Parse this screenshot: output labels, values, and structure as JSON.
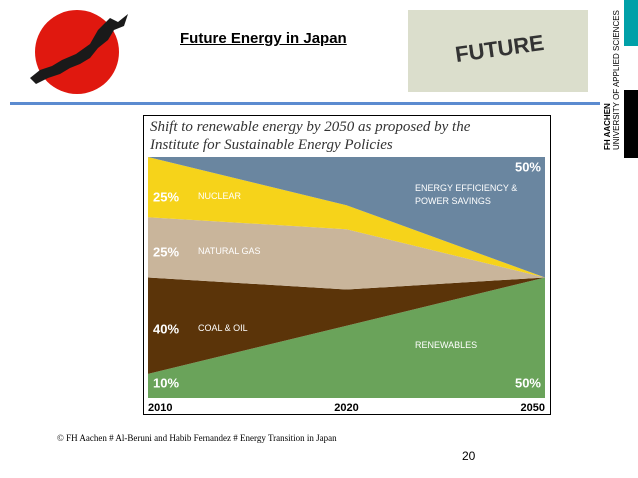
{
  "slide": {
    "title": "Future Energy in Japan",
    "photo_text": "FUTURE",
    "logo_name": "FH AACHEN",
    "logo_subtitle": "UNIVERSITY OF APPLIED SCIENCES",
    "footer": "© FH Aachen # Al-Beruni and Habib Fernandez # Energy Transition in Japan",
    "page_number": "20"
  },
  "chart_data": {
    "type": "stacked-area",
    "title": "Shift to renewable energy by 2050 as proposed by the Institute for Sustainable Energy Policies",
    "categories": [
      "2010",
      "2020",
      "2050"
    ],
    "series": [
      {
        "name": "RENEWABLES",
        "color": "#6aa35a",
        "values": [
          10,
          30,
          50
        ],
        "value_labels": [
          "10%",
          null,
          "50%"
        ]
      },
      {
        "name": "COAL & OIL",
        "color": "#5b3409",
        "values": [
          40,
          15,
          0
        ],
        "value_labels": [
          "40%",
          null,
          null
        ]
      },
      {
        "name": "NATURAL GAS",
        "color": "#c9b59b",
        "values": [
          25,
          25,
          0
        ],
        "value_labels": [
          "25%",
          null,
          null
        ]
      },
      {
        "name": "NUCLEAR",
        "color": "#f6d31a",
        "values": [
          25,
          10,
          0
        ],
        "value_labels": [
          "25%",
          null,
          null
        ]
      },
      {
        "name": "ENERGY EFFICIENCY & POWER SAVINGS",
        "color": "#6a86a0",
        "values": [
          0,
          20,
          50
        ],
        "value_labels": [
          null,
          null,
          "50%"
        ]
      }
    ]
  }
}
